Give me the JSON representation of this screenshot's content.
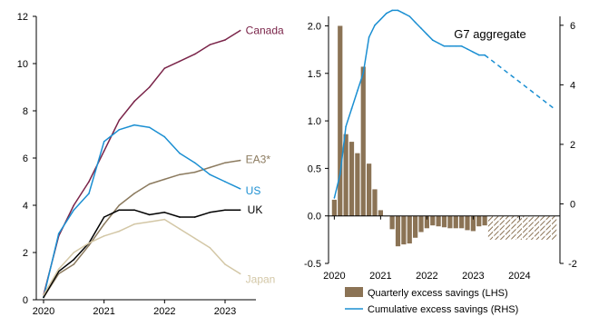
{
  "chart_data": [
    {
      "type": "line",
      "ylim": [
        0,
        12
      ],
      "yticks": [
        "0",
        "2",
        "4",
        "6",
        "8",
        "10",
        "12"
      ],
      "x_range": [
        2020.0,
        2023.33
      ],
      "xticks": [
        {
          "label": "2020",
          "x": 2020.0
        },
        {
          "label": "2021",
          "x": 2021.0
        },
        {
          "label": "2022",
          "x": 2022.0
        },
        {
          "label": "2023",
          "x": 2023.0
        }
      ],
      "series": [
        {
          "name": "Canada",
          "color": "#7a2449",
          "x": [
            2020.0,
            2020.25,
            2020.5,
            2020.75,
            2021.0,
            2021.25,
            2021.5,
            2021.75,
            2022.0,
            2022.25,
            2022.5,
            2022.75,
            2023.0,
            2023.25
          ],
          "y": [
            0.2,
            2.7,
            4.0,
            5.0,
            6.3,
            7.6,
            8.4,
            9.0,
            9.8,
            10.1,
            10.4,
            10.8,
            11.0,
            11.4
          ]
        },
        {
          "name": "EA3*",
          "color": "#8b7a5e",
          "x": [
            2020.0,
            2020.25,
            2020.5,
            2020.75,
            2021.0,
            2021.25,
            2021.5,
            2021.75,
            2022.0,
            2022.25,
            2022.5,
            2022.75,
            2023.0,
            2023.25
          ],
          "y": [
            0.1,
            1.1,
            1.5,
            2.3,
            3.2,
            4.0,
            4.5,
            4.9,
            5.1,
            5.3,
            5.4,
            5.6,
            5.8,
            5.9
          ]
        },
        {
          "name": "US",
          "color": "#1b8fd2",
          "x": [
            2020.0,
            2020.25,
            2020.5,
            2020.75,
            2021.0,
            2021.25,
            2021.5,
            2021.75,
            2022.0,
            2022.25,
            2022.5,
            2022.75,
            2023.0,
            2023.25
          ],
          "y": [
            0.1,
            2.8,
            3.8,
            4.5,
            6.7,
            7.2,
            7.4,
            7.3,
            6.9,
            6.2,
            5.8,
            5.3,
            5.0,
            4.7
          ]
        },
        {
          "name": "UK",
          "color": "#000000",
          "x": [
            2020.0,
            2020.25,
            2020.5,
            2020.75,
            2021.0,
            2021.25,
            2021.5,
            2021.75,
            2022.0,
            2022.25,
            2022.5,
            2022.75,
            2023.0,
            2023.25
          ],
          "y": [
            0.1,
            1.2,
            1.7,
            2.4,
            3.5,
            3.8,
            3.8,
            3.6,
            3.7,
            3.5,
            3.5,
            3.7,
            3.8,
            3.8
          ]
        },
        {
          "name": "Japan",
          "color": "#d3c7a6",
          "x": [
            2020.0,
            2020.25,
            2020.5,
            2020.75,
            2021.0,
            2021.25,
            2021.5,
            2021.75,
            2022.0,
            2022.25,
            2022.5,
            2022.75,
            2023.0,
            2023.25
          ],
          "y": [
            0.2,
            1.3,
            2.0,
            2.4,
            2.7,
            2.9,
            3.2,
            3.3,
            3.4,
            3.0,
            2.6,
            2.2,
            1.5,
            1.1
          ]
        }
      ]
    },
    {
      "type": "bar",
      "title": "G7 aggregate",
      "ylim": [
        -0.5,
        2.1
      ],
      "yticks": [
        "-0.5",
        "0.0",
        "0.5",
        "1.0",
        "1.5",
        "2.0"
      ],
      "y2lim": [
        -2,
        6.3
      ],
      "y2ticks": [
        "-2",
        "0",
        "2",
        "4",
        "6"
      ],
      "x_range": [
        2019.875,
        2024.875
      ],
      "xticks": [
        {
          "label": "2020",
          "x": 2020.0
        },
        {
          "label": "2021",
          "x": 2021.0
        },
        {
          "label": "2022",
          "x": 2022.0
        },
        {
          "label": "2023",
          "x": 2023.0
        },
        {
          "label": "2024",
          "x": 2024.0
        }
      ],
      "bars": {
        "name": "Quarterly excess savings (LHS)",
        "color": "#8b7355",
        "x": [
          2020.0,
          2020.125,
          2020.25,
          2020.375,
          2020.5,
          2020.625,
          2020.75,
          2020.875,
          2021.0,
          2021.125,
          2021.25,
          2021.375,
          2021.5,
          2021.625,
          2021.75,
          2021.875,
          2022.0,
          2022.125,
          2022.25,
          2022.375,
          2022.5,
          2022.625,
          2022.75,
          2022.875,
          2023.0,
          2023.125,
          2023.25
        ],
        "values": [
          0.17,
          2.0,
          0.86,
          0.78,
          0.66,
          1.57,
          0.55,
          0.28,
          0.06,
          0.0,
          -0.14,
          -0.32,
          -0.3,
          -0.29,
          -0.23,
          -0.17,
          -0.13,
          -0.1,
          -0.11,
          -0.12,
          -0.13,
          -0.13,
          -0.13,
          -0.15,
          -0.16,
          -0.11,
          -0.1
        ]
      },
      "forecast_bars": {
        "color": "#8b7355",
        "x": [
          2023.375,
          2023.5,
          2023.625,
          2023.75,
          2023.875,
          2024.0,
          2024.125,
          2024.25,
          2024.375,
          2024.5,
          2024.625,
          2024.75
        ],
        "values": [
          -0.25,
          -0.25,
          -0.25,
          -0.25,
          -0.25,
          -0.25,
          -0.25,
          -0.25,
          -0.25,
          -0.25,
          -0.25,
          -0.25
        ]
      },
      "line": {
        "name": "Cumulative excess savings (RHS)",
        "color": "#1b8fd2",
        "x": [
          2020.0,
          2020.125,
          2020.25,
          2020.375,
          2020.5,
          2020.625,
          2020.75,
          2020.875,
          2021.0,
          2021.125,
          2021.25,
          2021.375,
          2021.5,
          2021.625,
          2021.75,
          2021.875,
          2022.0,
          2022.125,
          2022.25,
          2022.375,
          2022.5,
          2022.625,
          2022.75,
          2022.875,
          2023.0,
          2023.125,
          2023.25
        ],
        "y": [
          0.2,
          1.0,
          2.6,
          3.2,
          3.8,
          4.4,
          5.6,
          6.0,
          6.2,
          6.4,
          6.5,
          6.5,
          6.4,
          6.3,
          6.1,
          5.9,
          5.7,
          5.5,
          5.4,
          5.3,
          5.3,
          5.3,
          5.3,
          5.2,
          5.1,
          5.0,
          5.0
        ],
        "forecast_x": [
          2023.25,
          2023.5,
          2023.75,
          2024.0,
          2024.25,
          2024.5,
          2024.75
        ],
        "forecast_y": [
          5.0,
          4.7,
          4.4,
          4.1,
          3.8,
          3.5,
          3.2
        ]
      }
    }
  ]
}
